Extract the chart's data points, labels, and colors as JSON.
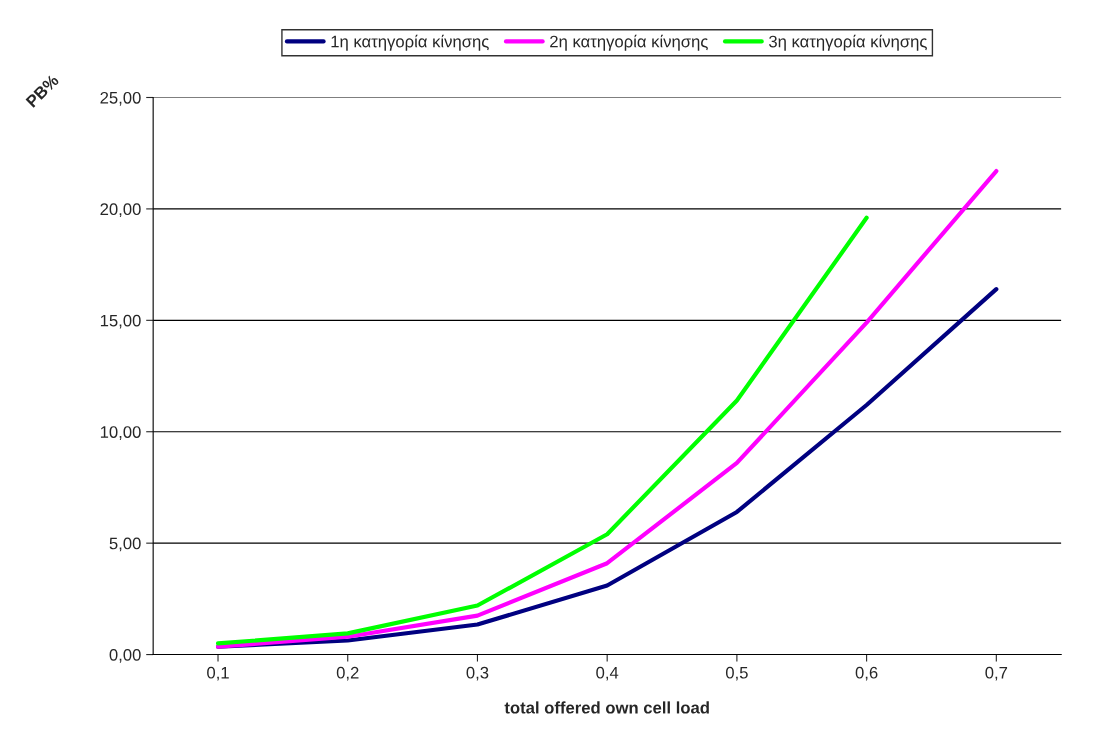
{
  "chart_data": {
    "type": "line",
    "xlabel": "total offered own cell load",
    "ylabel": "PB%",
    "categories": [
      "0,1",
      "0,2",
      "0,3",
      "0,4",
      "0,5",
      "0,6",
      "0,7"
    ],
    "series": [
      {
        "name": "1η κατηγορία κίνησης",
        "color": "#000080",
        "values": [
          0.35,
          0.63,
          1.35,
          3.1,
          6.4,
          11.2,
          16.4
        ]
      },
      {
        "name": "2η κατηγορία κίνησης",
        "color": "#ff00ff",
        "values": [
          0.35,
          0.8,
          1.75,
          4.1,
          8.6,
          14.9,
          21.7
        ]
      },
      {
        "name": "3η κατηγορία κίνησης",
        "color": "#00ff00",
        "values": [
          0.5,
          0.95,
          2.2,
          5.4,
          11.4,
          19.6,
          null
        ]
      }
    ],
    "ylim": [
      0,
      25
    ],
    "yticks": [
      {
        "value": 0,
        "label": "0,00"
      },
      {
        "value": 5,
        "label": "5,00"
      },
      {
        "value": 10,
        "label": "10,00"
      },
      {
        "value": 15,
        "label": "15,00"
      },
      {
        "value": 20,
        "label": "20,00"
      },
      {
        "value": 25,
        "label": "25,00"
      }
    ],
    "grid": "y",
    "legend": "top",
    "marker": "none",
    "line_style": "solid"
  }
}
